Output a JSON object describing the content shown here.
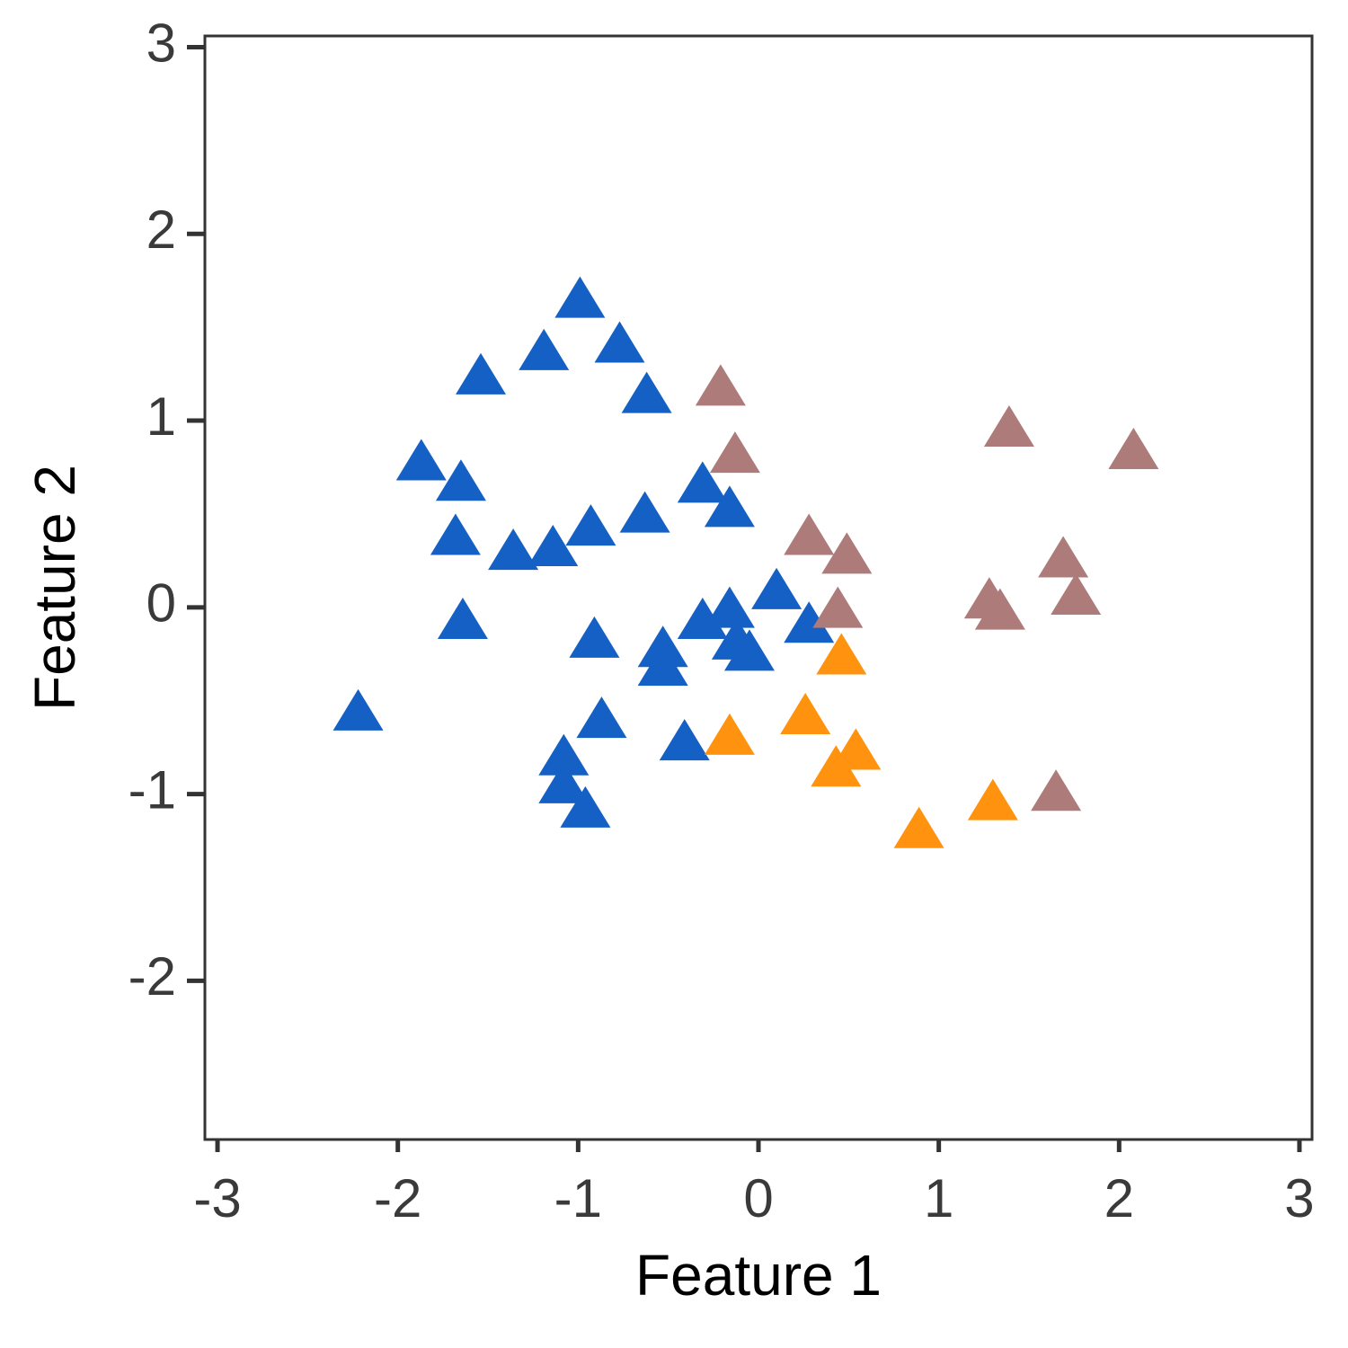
{
  "chart_data": {
    "type": "scatter",
    "x_label": "Feature 1",
    "y_label": "Feature 2",
    "xlim": [
      -3.07,
      3.07
    ],
    "ylim": [
      -2.85,
      3.06
    ],
    "xticks": [
      -3,
      -2,
      -1,
      0,
      1,
      2,
      3
    ],
    "yticks": [
      -2,
      -1,
      0,
      1,
      2,
      3
    ],
    "grid": false,
    "marker": "triangle",
    "series": [
      {
        "color": "#1560c4",
        "x": [
          -0.99,
          -1.19,
          -0.77,
          -1.54,
          -0.62,
          -1.87,
          -1.65,
          -1.68,
          -1.36,
          -1.14,
          -0.93,
          -0.63,
          -0.31,
          -0.16,
          -1.64,
          -2.22,
          -0.91,
          -0.53,
          -0.53,
          -0.31,
          -0.16,
          -0.12,
          -0.05,
          0.1,
          0.28,
          -0.87,
          -0.41,
          -1.08,
          -1.08,
          -0.96
        ],
        "values": [
          1.65,
          1.37,
          1.41,
          1.24,
          1.14,
          0.78,
          0.67,
          0.38,
          0.3,
          0.32,
          0.43,
          0.5,
          0.66,
          0.53,
          -0.07,
          -0.56,
          -0.17,
          -0.22,
          -0.32,
          -0.07,
          -0.01,
          -0.18,
          -0.24,
          0.09,
          -0.09,
          -0.6,
          -0.72,
          -0.8,
          -0.95,
          -1.08
        ]
      },
      {
        "color": "#ad7b79",
        "x": [
          -0.21,
          -0.13,
          0.28,
          0.49,
          0.44,
          1.39,
          2.08,
          1.69,
          1.76,
          1.28,
          1.34,
          1.65
        ],
        "values": [
          1.18,
          0.82,
          0.38,
          0.28,
          -0.01,
          0.96,
          0.84,
          0.26,
          0.06,
          0.04,
          -0.02,
          -0.99
        ]
      },
      {
        "color": "#ff930f",
        "x": [
          0.46,
          0.26,
          0.54,
          0.43,
          -0.16,
          0.89,
          1.3
        ],
        "values": [
          -0.26,
          -0.58,
          -0.77,
          -0.86,
          -0.69,
          -1.19,
          -1.04
        ]
      }
    ]
  }
}
